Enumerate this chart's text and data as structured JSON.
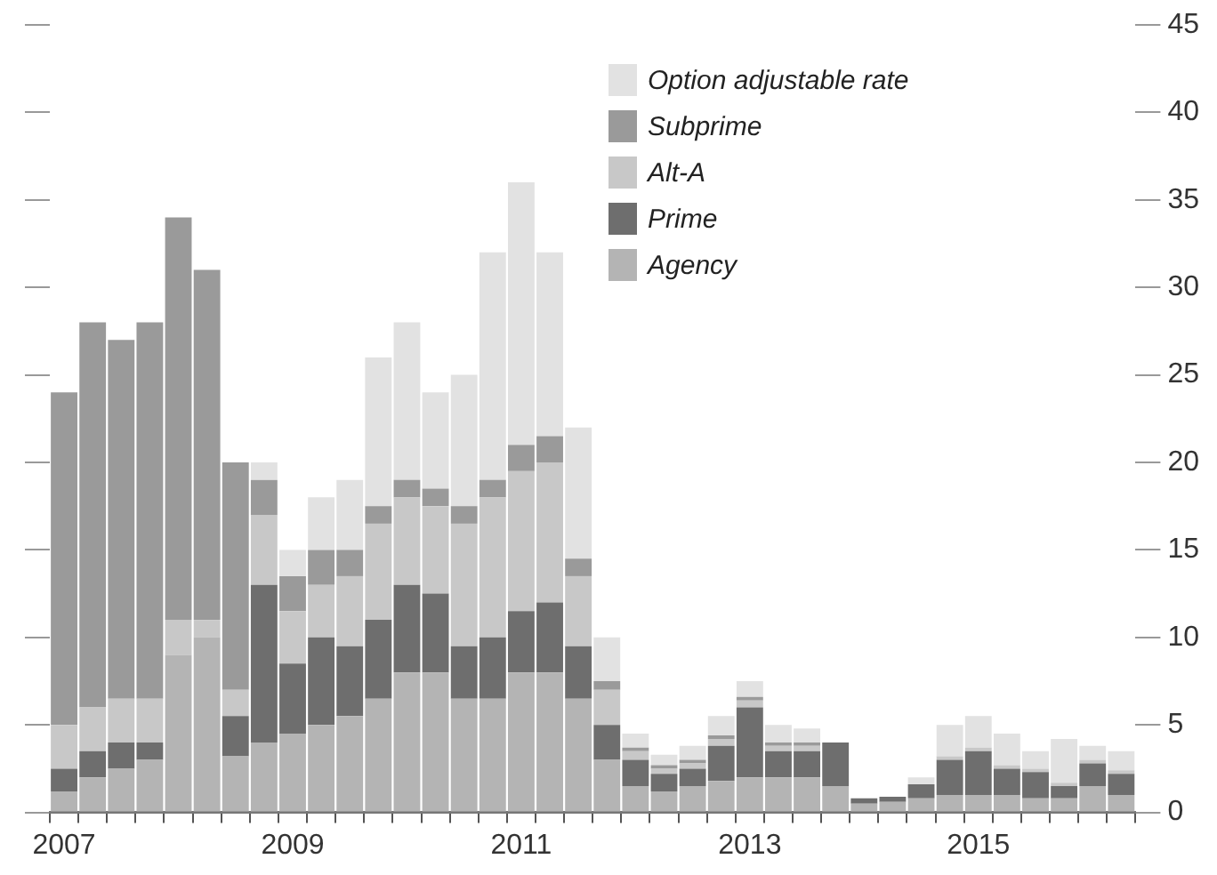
{
  "chart_data": {
    "type": "bar",
    "stacked": true,
    "categories": [
      "2007",
      null,
      null,
      null,
      null,
      null,
      null,
      null,
      "2009",
      null,
      null,
      null,
      null,
      null,
      null,
      null,
      "2011",
      null,
      null,
      null,
      null,
      null,
      null,
      null,
      "2013",
      null,
      null,
      null,
      null,
      null,
      null,
      null,
      "2015",
      null,
      null,
      null,
      null,
      null
    ],
    "series": [
      {
        "name": "Agency",
        "color": "#b4b4b4",
        "values": [
          1.2,
          2,
          2.5,
          3,
          9,
          10,
          3.2,
          4,
          4.5,
          5,
          5.5,
          6.5,
          8,
          8,
          6.5,
          6.5,
          8,
          8,
          6.5,
          3,
          1.5,
          1.2,
          1.5,
          1.8,
          2,
          2,
          2,
          1.5,
          0.5,
          0.6,
          0.8,
          1,
          1,
          1,
          0.8,
          0.8,
          1.5,
          1
        ]
      },
      {
        "name": "Prime",
        "color": "#6e6e6e",
        "values": [
          1.3,
          1.5,
          1.5,
          1,
          0,
          0,
          2.3,
          9,
          4,
          5,
          4,
          4.5,
          5,
          4.5,
          3,
          3.5,
          3.5,
          4,
          3,
          2,
          1.5,
          1,
          1,
          2,
          4,
          1.5,
          1.5,
          2.5,
          0.3,
          0.3,
          0.8,
          2,
          2.5,
          1.5,
          1.5,
          0.7,
          1.3,
          1.2
        ]
      },
      {
        "name": "Alt-A",
        "color": "#c8c8c8",
        "values": [
          2.5,
          2.5,
          2.5,
          2.5,
          2,
          1,
          1.5,
          4,
          3,
          3,
          4,
          5.5,
          5,
          5,
          7,
          8,
          8,
          8,
          4,
          2,
          0.5,
          0.3,
          0.3,
          0.4,
          0.4,
          0.3,
          0.3,
          0,
          0,
          0,
          0,
          0.2,
          0.2,
          0.2,
          0.2,
          0.2,
          0.2,
          0.2
        ]
      },
      {
        "name": "Subprime",
        "color": "#9a9a9a",
        "values": [
          19,
          22,
          20.5,
          21.5,
          23,
          20,
          13,
          2,
          2,
          2,
          1.5,
          1,
          1,
          1,
          1,
          1,
          1.5,
          1.5,
          1,
          0.5,
          0.2,
          0.2,
          0.2,
          0.2,
          0.2,
          0.2,
          0.2,
          0,
          0,
          0,
          0,
          0,
          0,
          0,
          0,
          0,
          0,
          0
        ]
      },
      {
        "name": "Option adjustable rate",
        "color": "#e2e2e2",
        "values": [
          0,
          0,
          0,
          0,
          0,
          0,
          0,
          1,
          1.5,
          3,
          4,
          8.5,
          9,
          5.5,
          7.5,
          13,
          15,
          10.5,
          7.5,
          2.5,
          0.8,
          0.6,
          0.8,
          1.1,
          0.9,
          1,
          0.8,
          0,
          0,
          0,
          0.4,
          1.8,
          1.8,
          1.8,
          1,
          2.5,
          0.8,
          1.1
        ]
      }
    ],
    "ylim": [
      0,
      45
    ],
    "yticks": [
      0,
      5,
      10,
      15,
      20,
      25,
      30,
      35,
      40,
      45
    ],
    "legend": "top right",
    "grid": false
  }
}
